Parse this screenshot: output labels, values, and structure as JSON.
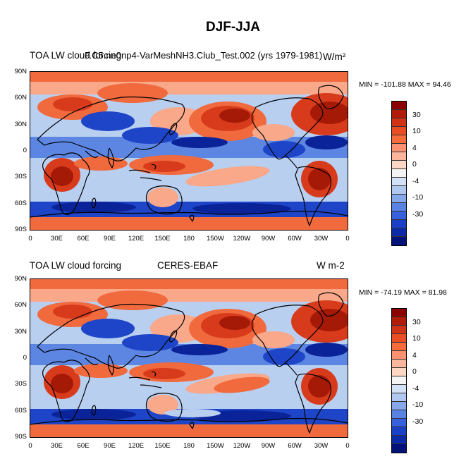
{
  "figure_title": "DJF-JJA",
  "panels": [
    {
      "left_title": "TOA LW cloud forcing",
      "center_title": "F.C5.ne0np4-VarMeshNH3.Club_Test.002 (yrs 1979-1981)",
      "right_title": "W/m²",
      "min_max": "MIN = -101.88 MAX =  94.46",
      "lat_labels": [
        "90N",
        "60N",
        "30N",
        "0",
        "30S",
        "60S",
        "90S"
      ],
      "lon_labels": [
        "0",
        "30E",
        "60E",
        "90E",
        "120E",
        "150E",
        "180",
        "150W",
        "120W",
        "90W",
        "60W",
        "30W",
        "0"
      ],
      "colorbar_labels": [
        "30",
        "10",
        "4",
        "0",
        "-4",
        "-10",
        "-30"
      ]
    },
    {
      "left_title": "TOA LW cloud forcing",
      "center_title": "CERES-EBAF",
      "right_title": "W m-2",
      "min_max": "MIN = -74.19 MAX =  81.98",
      "lat_labels": [
        "90N",
        "60N",
        "30N",
        "0",
        "30S",
        "60S",
        "90S"
      ],
      "lon_labels": [
        "0",
        "30E",
        "60E",
        "90E",
        "120E",
        "150E",
        "180",
        "150W",
        "120W",
        "90W",
        "60W",
        "30W",
        "0"
      ],
      "colorbar_labels": [
        "30",
        "10",
        "4",
        "0",
        "-4",
        "-10",
        "-30"
      ]
    }
  ],
  "colorbar_colors": [
    "#8b0000",
    "#b01c06",
    "#cf3215",
    "#e84d24",
    "#f56b3a",
    "#fa9170",
    "#fcb69c",
    "#fdd6c4",
    "#f4f4f4",
    "#d2e1f5",
    "#b0c8f0",
    "#86a7ea",
    "#5a82e3",
    "#3660dc",
    "#1a40c8",
    "#0c2aa8",
    "#03137a"
  ],
  "field_colors": {
    "deep_red": "#a51a06",
    "red": "#d83b1c",
    "orange": "#f06a3e",
    "light_orange": "#f9a88a",
    "pale": "#f3e4dc",
    "light_blue": "#b8cff0",
    "blue": "#5c86e2",
    "deep_blue": "#1e45c8",
    "navy": "#0b2399"
  }
}
